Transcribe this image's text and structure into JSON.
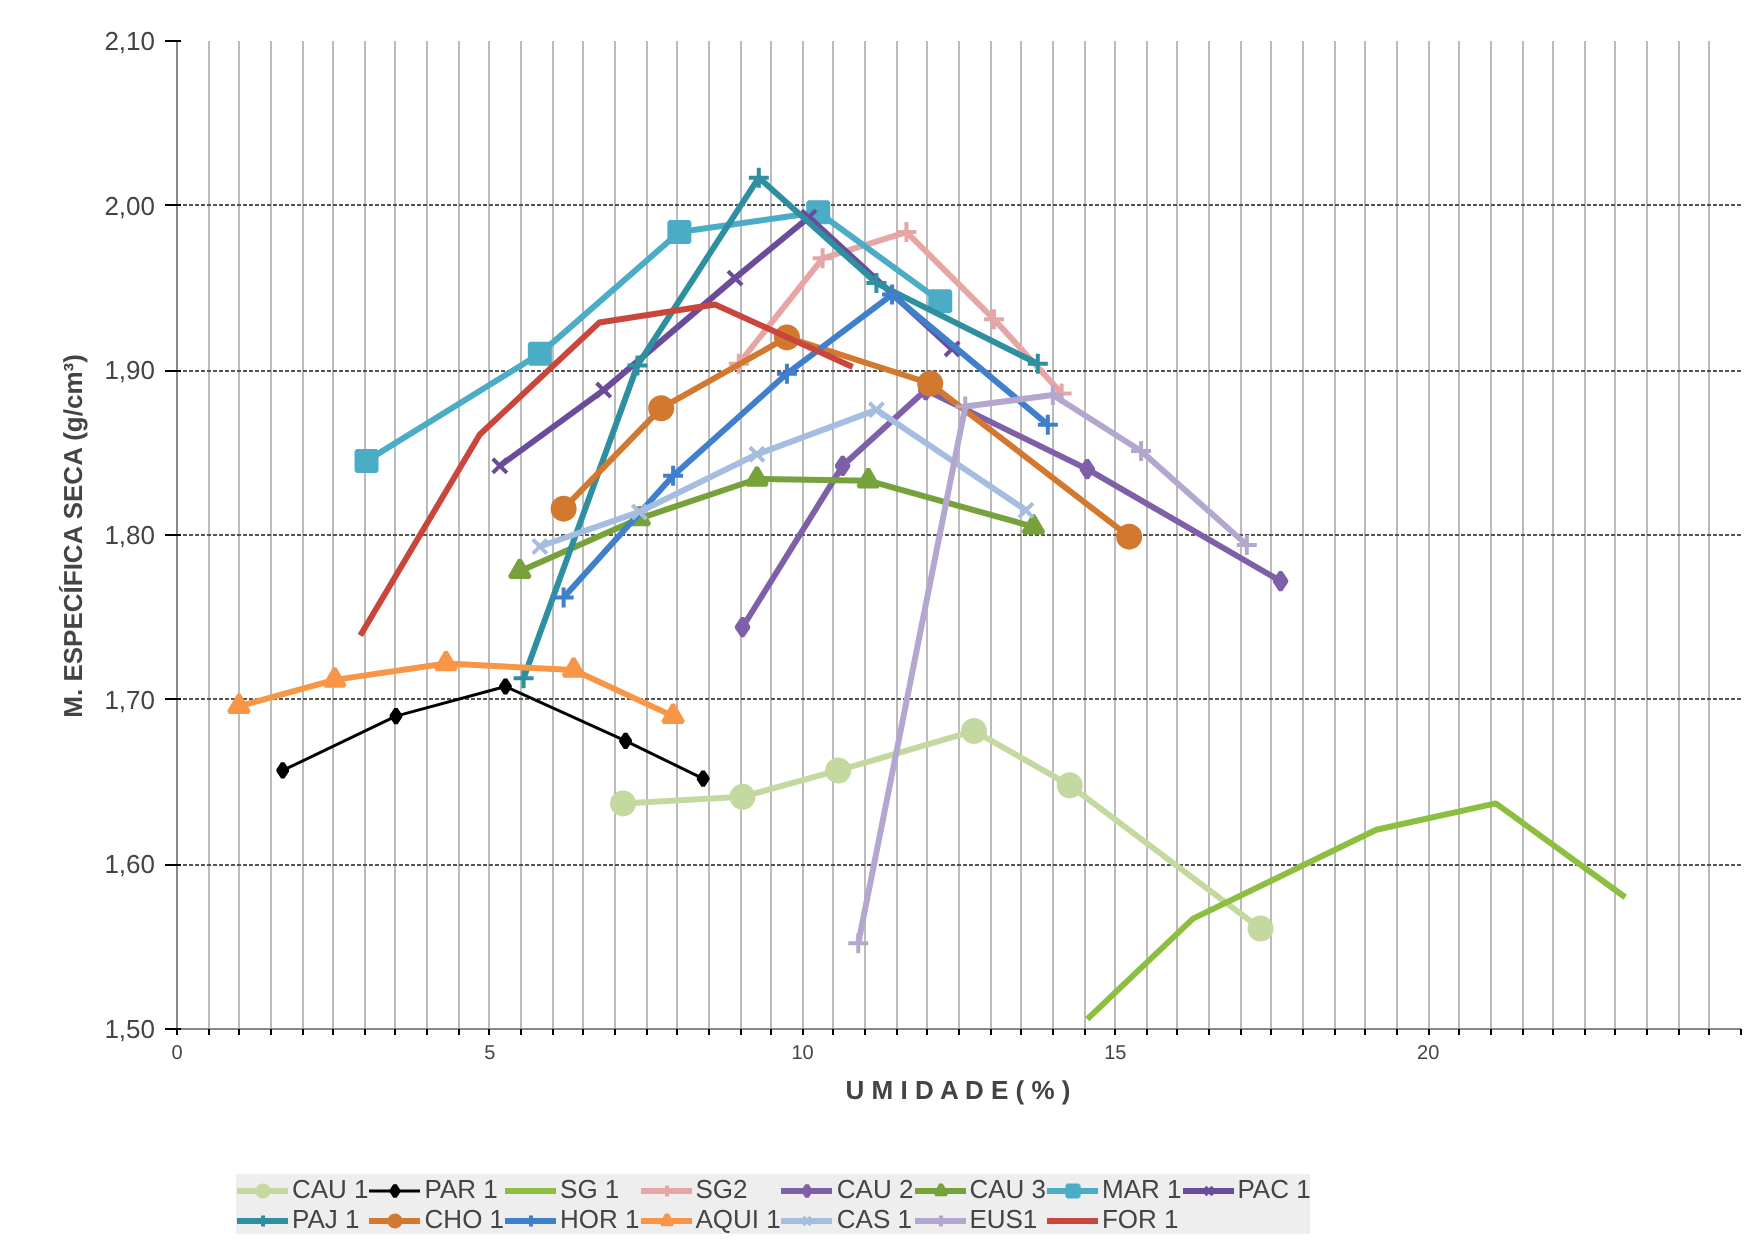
{
  "chart_data": {
    "type": "line",
    "xlabel": "U M I D A D E ( % )",
    "ylabel": "M. ESPECÍFICA SECA (g/cm³)",
    "xlim": [
      0,
      25
    ],
    "ylim": [
      1.5,
      2.1
    ],
    "xticks": [
      0,
      {
        "value": 0.5,
        "label": null
      },
      {
        "value": 1,
        "label": null
      },
      {
        "value": 1.5,
        "label": null
      },
      {
        "value": 2,
        "label": null
      },
      {
        "value": 2.5,
        "label": null
      },
      {
        "value": 3,
        "label": null
      },
      {
        "value": 3.5,
        "label": null
      },
      {
        "value": 4,
        "label": null
      },
      {
        "value": 4.5,
        "label": null
      },
      5,
      {
        "value": 5.5,
        "label": null
      },
      {
        "value": 6,
        "label": null
      },
      {
        "value": 6.5,
        "label": null
      },
      {
        "value": 7,
        "label": null
      },
      {
        "value": 7.5,
        "label": null
      },
      {
        "value": 8,
        "label": null
      },
      {
        "value": 8.5,
        "label": null
      },
      {
        "value": 9,
        "label": null
      },
      {
        "value": 9.5,
        "label": null
      },
      10,
      {
        "value": 10.5,
        "label": null
      },
      {
        "value": 11,
        "label": null
      },
      {
        "value": 11.5,
        "label": null
      },
      {
        "value": 12,
        "label": null
      },
      {
        "value": 12.5,
        "label": null
      },
      {
        "value": 13,
        "label": null
      },
      {
        "value": 13.5,
        "label": null
      },
      {
        "value": 14,
        "label": null
      },
      {
        "value": 14.5,
        "label": null
      },
      15,
      {
        "value": 15.5,
        "label": null
      },
      {
        "value": 16,
        "label": null
      },
      {
        "value": 16.5,
        "label": null
      },
      {
        "value": 17,
        "label": null
      },
      {
        "value": 17.5,
        "label": null
      },
      {
        "value": 18,
        "label": null
      },
      {
        "value": 18.5,
        "label": null
      },
      {
        "value": 19,
        "label": null
      },
      {
        "value": 19.5,
        "label": null
      },
      20,
      {
        "value": 20.5,
        "label": null
      },
      {
        "value": 21,
        "label": null
      },
      {
        "value": 21.5,
        "label": null
      },
      {
        "value": 22,
        "label": null
      },
      {
        "value": 22.5,
        "label": null
      },
      {
        "value": 23,
        "label": null
      },
      {
        "value": 23.5,
        "label": null
      },
      {
        "value": 24,
        "label": null
      },
      {
        "value": 24.5,
        "label": null
      },
      {
        "value": 25,
        "label": null
      }
    ],
    "yticks": [
      {
        "value": 1.5,
        "label": "1,50"
      },
      {
        "value": 1.6,
        "label": "1,60"
      },
      {
        "value": 1.7,
        "label": "1,70"
      },
      {
        "value": 1.8,
        "label": "1,80"
      },
      {
        "value": 1.9,
        "label": "1,90"
      },
      {
        "value": 2.0,
        "label": "2,00"
      },
      {
        "value": 2.1,
        "label": "2,10"
      }
    ],
    "grid": true,
    "legend": "bottom",
    "series": [
      {
        "name": "CAU 1",
        "color": "#c4d9a0",
        "marker": "circle",
        "x": [
          7.13,
          9.04,
          10.57,
          12.74,
          14.27,
          17.32
        ],
        "values": [
          1.637,
          1.641,
          1.657,
          1.681,
          1.648,
          1.561
        ]
      },
      {
        "name": "PAR 1",
        "color": "#000000",
        "marker": "diamond",
        "x": [
          1.69,
          3.5,
          5.25,
          7.17,
          8.41
        ],
        "values": [
          1.657,
          1.69,
          1.708,
          1.675,
          1.652
        ]
      },
      {
        "name": "SG 1",
        "color": "#8cbf40",
        "marker": "none",
        "x": [
          14.55,
          16.24,
          19.17,
          21.08,
          23.15
        ],
        "values": [
          1.506,
          1.567,
          1.621,
          1.637,
          1.58
        ]
      },
      {
        "name": "SG2",
        "color": "#e6a6a6",
        "marker": "cross",
        "x": [
          8.98,
          10.32,
          11.66,
          13.06,
          14.14
        ],
        "values": [
          1.904,
          1.968,
          1.984,
          1.931,
          1.886
        ]
      },
      {
        "name": "CAU 2",
        "color": "#7f5fa8",
        "marker": "diamond",
        "x": [
          9.04,
          10.64,
          11.97,
          14.55,
          17.64
        ],
        "values": [
          1.744,
          1.842,
          1.888,
          1.84,
          1.772
        ]
      },
      {
        "name": "CAU 3",
        "color": "#77a23b",
        "marker": "triangle",
        "x": [
          5.48,
          7.39,
          9.27,
          11.05,
          13.69
        ],
        "values": [
          1.778,
          1.81,
          1.834,
          1.833,
          1.805
        ]
      },
      {
        "name": "MAR 1",
        "color": "#4bacc6",
        "marker": "square",
        "x": [
          3.03,
          5.8,
          8.03,
          10.25,
          12.2
        ],
        "values": [
          1.845,
          1.91,
          1.984,
          1.996,
          1.942
        ]
      },
      {
        "name": "PAC 1",
        "color": "#6b4c9a",
        "marker": "x",
        "x": [
          5.16,
          6.82,
          8.92,
          10.1,
          12.39
        ],
        "values": [
          1.842,
          1.888,
          1.956,
          1.993,
          1.913
        ]
      },
      {
        "name": "PAJ 1",
        "color": "#2e8fa0",
        "marker": "cross",
        "x": [
          5.54,
          7.36,
          9.3,
          11.18,
          13.76
        ],
        "values": [
          1.713,
          1.903,
          2.017,
          1.953,
          1.904
        ]
      },
      {
        "name": "CHO 1",
        "color": "#d2782f",
        "marker": "circle",
        "x": [
          6.18,
          7.74,
          9.75,
          12.04,
          15.22
        ],
        "values": [
          1.816,
          1.877,
          1.92,
          1.892,
          1.799
        ]
      },
      {
        "name": "HOR 1",
        "color": "#3f7fcc",
        "marker": "cross",
        "x": [
          6.18,
          7.93,
          9.75,
          11.43,
          13.92
        ],
        "values": [
          1.762,
          1.836,
          1.898,
          1.946,
          1.867
        ]
      },
      {
        "name": "AQUI 1",
        "color": "#f79646",
        "marker": "triangle",
        "x": [
          0.99,
          2.52,
          4.3,
          6.34,
          7.93
        ],
        "values": [
          1.696,
          1.712,
          1.722,
          1.718,
          1.69
        ]
      },
      {
        "name": "CAS 1",
        "color": "#a5bde0",
        "marker": "x",
        "x": [
          5.8,
          7.39,
          9.27,
          11.18,
          13.57
        ],
        "values": [
          1.793,
          1.814,
          1.849,
          1.876,
          1.815
        ]
      },
      {
        "name": "EUS1",
        "color": "#b4a7cf",
        "marker": "cross",
        "x": [
          10.89,
          12.6,
          14.0,
          15.41,
          17.1
        ],
        "values": [
          1.552,
          1.878,
          1.885,
          1.851,
          1.794
        ]
      },
      {
        "name": "FOR 1",
        "color": "#c9463d",
        "marker": "none",
        "x": [
          2.93,
          4.84,
          6.75,
          8.6,
          10.8
        ],
        "values": [
          1.739,
          1.861,
          1.929,
          1.94,
          1.902
        ]
      }
    ]
  }
}
